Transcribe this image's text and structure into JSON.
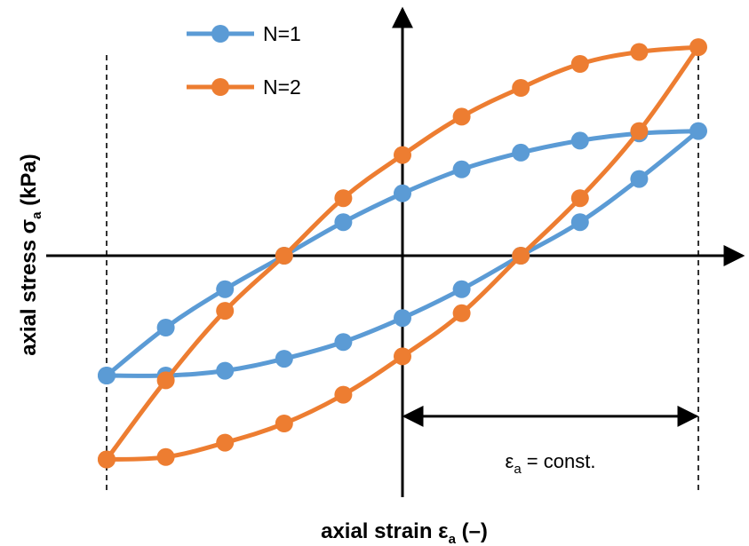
{
  "chart_data": {
    "type": "line",
    "title": "",
    "xlabel": {
      "main": "axial strain ε",
      "sub": "a",
      "tail": " (–)"
    },
    "ylabel": {
      "main": "axial stress σ",
      "sub": "a",
      "tail": " (kPa)"
    },
    "xlim": [
      -1.3,
      1.25
    ],
    "ylim": [
      -1.2,
      1.05
    ],
    "grid": false,
    "legend": "top-left",
    "series": [
      {
        "name": "N=1",
        "color": "#5b9bd5",
        "points": [
          [
            -1.0,
            -0.5
          ],
          [
            -0.8,
            -0.3
          ],
          [
            -0.6,
            -0.14
          ],
          [
            -0.4,
            0.0
          ],
          [
            -0.2,
            0.14
          ],
          [
            0.0,
            0.26
          ],
          [
            0.2,
            0.36
          ],
          [
            0.4,
            0.43
          ],
          [
            0.6,
            0.48
          ],
          [
            0.8,
            0.51
          ],
          [
            1.0,
            0.52
          ],
          [
            0.8,
            0.32
          ],
          [
            0.6,
            0.14
          ],
          [
            0.4,
            0.0
          ],
          [
            0.2,
            -0.14
          ],
          [
            0.0,
            -0.26
          ],
          [
            -0.2,
            -0.36
          ],
          [
            -0.4,
            -0.43
          ],
          [
            -0.6,
            -0.48
          ],
          [
            -0.8,
            -0.5
          ],
          [
            -1.0,
            -0.5
          ]
        ]
      },
      {
        "name": "N=2",
        "color": "#ed7d31",
        "points": [
          [
            -1.0,
            -0.85
          ],
          [
            -0.8,
            -0.52
          ],
          [
            -0.6,
            -0.23
          ],
          [
            -0.4,
            0.0
          ],
          [
            -0.2,
            0.24
          ],
          [
            0.0,
            0.42
          ],
          [
            0.2,
            0.58
          ],
          [
            0.4,
            0.7
          ],
          [
            0.6,
            0.8
          ],
          [
            0.8,
            0.85
          ],
          [
            1.0,
            0.87
          ],
          [
            0.8,
            0.52
          ],
          [
            0.6,
            0.24
          ],
          [
            0.4,
            0.0
          ],
          [
            0.2,
            -0.24
          ],
          [
            0.0,
            -0.42
          ],
          [
            -0.2,
            -0.58
          ],
          [
            -0.4,
            -0.7
          ],
          [
            -0.6,
            -0.78
          ],
          [
            -0.8,
            -0.84
          ],
          [
            -1.0,
            -0.85
          ]
        ]
      }
    ],
    "reference_lines": {
      "x": [
        -1.0,
        1.0
      ]
    },
    "annotation": {
      "from": 0.0,
      "to": 1.0,
      "y": -0.67,
      "text": {
        "main": "ε",
        "sub": "a",
        "tail": " = const."
      }
    }
  }
}
